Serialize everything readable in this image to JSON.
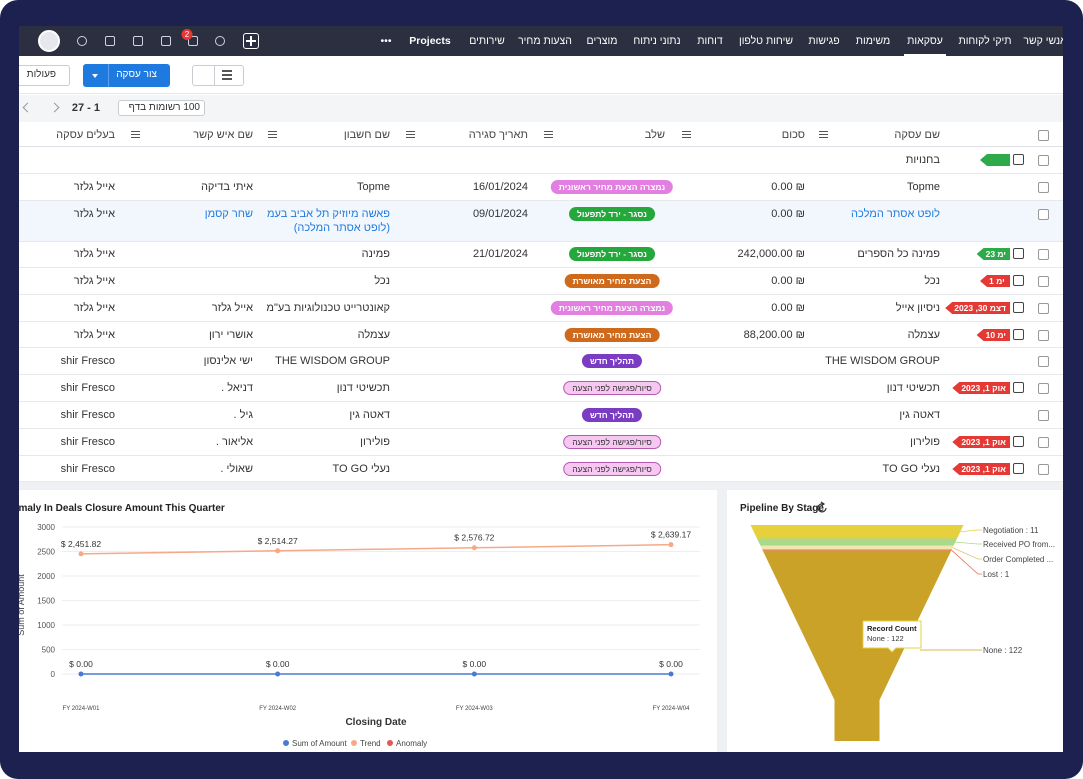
{
  "nav": {
    "items": [
      "אנשי קשר",
      "תיקי לקוחות",
      "עסקאות",
      "משימות",
      "פגישות",
      "שיחות טלפון",
      "דוחות",
      "נתוני ניתוח",
      "מוצרים",
      "הצעות מחיר",
      "שירותים",
      "Projects",
      "•••"
    ],
    "active": 2,
    "notification_count": "2"
  },
  "toolbar": {
    "actions": "פעולות",
    "create": "צור עסקה"
  },
  "pagination": {
    "range": "1 - 27",
    "per_page": "100 רשומות בדף"
  },
  "table": {
    "columns": [
      "שם עסקה",
      "סכום",
      "שלב",
      "תאריך סגירה",
      "שם חשבון",
      "שם איש קשר",
      "בעלים עסקה"
    ],
    "rows": [
      {
        "tag": {
          "color": "#2eaa4a"
        },
        "name": "בחנויות"
      },
      {
        "name": "Topme",
        "amount": "0.00 ₪",
        "stage": {
          "label": "נמצרה הצעת מחיר ראשונית",
          "color": "#e27fe0"
        },
        "date": "16/01/2024",
        "account": "Topme",
        "contact": "איתי בדיקה",
        "owner": "אייל גלזר"
      },
      {
        "name": "לופט אסתר המלכה",
        "amount": "0.00 ₪",
        "stage": {
          "label": "נסגר - ירד לתפעול",
          "color": "#24a83c"
        },
        "date": "09/01/2024",
        "account": "פאשה מיוזיק תל אביב בעמ (לופט אסתר המלכה)",
        "contact": "שחר קסמן",
        "owner": "אייל גלזר",
        "link": true
      },
      {
        "tag": {
          "label": "23 ימ",
          "color": "#2eaa4a"
        },
        "name": "פמינה כל הספרים",
        "amount": "242,000.00 ₪",
        "stage": {
          "label": "נסגר - ירד לתפעול",
          "color": "#24a83c"
        },
        "date": "21/01/2024",
        "account": "פמינה",
        "owner": "אייל גלזר"
      },
      {
        "tag": {
          "label": "1 ימ",
          "color": "#e53935"
        },
        "name": "נכל",
        "amount": "0.00 ₪",
        "stage": {
          "label": "הצעת מחיר מאושרת",
          "color": "#cf6a1c"
        },
        "account": "נכל",
        "owner": "אייל גלזר"
      },
      {
        "tag": {
          "label": "דצמ 30, 2023",
          "color": "#e53935"
        },
        "name": "ניסיון אייל",
        "amount": "0.00 ₪",
        "stage": {
          "label": "נמצרה הצעת מחיר ראשונית",
          "color": "#e27fe0"
        },
        "account": "קאונטרייט טכנולוגיות בע\"מ",
        "contact": "אייל גלזר",
        "owner": "אייל גלזר"
      },
      {
        "tag": {
          "label": "10 ימ",
          "color": "#e53935"
        },
        "name": "עצמלה",
        "amount": "88,200.00 ₪",
        "stage": {
          "label": "הצעת מחיר מאושרת",
          "color": "#cf6a1c"
        },
        "account": "עצמלה",
        "contact": "אושרי ירון",
        "owner": "אייל גלזר"
      },
      {
        "name": "THE WISDOM GROUP",
        "stage": {
          "label": "תהליך חדש",
          "color": "#7a3cc2"
        },
        "account": "THE WISDOM GROUP",
        "contact": "ישי אלינסון",
        "owner": "shir Fresco"
      },
      {
        "tag": {
          "label": "אוק 1, 2023",
          "color": "#e53935"
        },
        "name": "תכשיטי דנון",
        "stage": {
          "label": "סיור/פגישה לפני הצעה",
          "color": "#f6c8f1"
        },
        "account": "תכשיטי דנון",
        "contact": "דניאל .",
        "owner": "shir Fresco"
      },
      {
        "name": "דאטה גין",
        "stage": {
          "label": "תהליך חדש",
          "color": "#7a3cc2"
        },
        "account": "דאטה גין",
        "contact": "גיל .",
        "owner": "shir Fresco"
      },
      {
        "tag": {
          "label": "אוק 1, 2023",
          "color": "#e53935"
        },
        "name": "פולירון",
        "stage": {
          "label": "סיור/פגישה לפני הצעה",
          "color": "#f6c8f1"
        },
        "account": "פולירון",
        "contact": "אליאור .",
        "owner": "shir Fresco"
      },
      {
        "tag": {
          "label": "אוק 1, 2023",
          "color": "#e53935"
        },
        "name": "נעלי TO GO",
        "stage": {
          "label": "סיור/פגישה לפני הצעה",
          "color": "#f6c8f1"
        },
        "account": "נעלי TO GO",
        "contact": "שאולי .",
        "owner": "shir Fresco"
      }
    ]
  },
  "chart_data": [
    {
      "type": "line",
      "title": "Anomaly In Deals Closure Amount This Quarter",
      "x_label": "Closing Date",
      "y_label": "Sum of Amount",
      "categories": [
        "FY 2024-W01",
        "FY 2024-W02",
        "FY 2024-W03",
        "FY 2024-W04"
      ],
      "series": [
        {
          "name": "Sum of Amount",
          "color": "#4a7bd0",
          "values": [
            0,
            0,
            0,
            0
          ],
          "value_labels": [
            "$ 0.00",
            "$ 0.00",
            "$ 0.00",
            "$ 0.00"
          ]
        },
        {
          "name": "Trend",
          "color": "#f5a987",
          "values": [
            2451.82,
            2514.27,
            2576.72,
            2639.17
          ],
          "value_labels": [
            "$ 2,451.82",
            "$ 2,514.27",
            "$ 2,576.72",
            "$ 2,639.17"
          ]
        },
        {
          "name": "Anomaly",
          "color": "#e8564f",
          "values": [
            null,
            null,
            null,
            null
          ]
        }
      ],
      "ylim": [
        0,
        3000
      ],
      "yticks": [
        0,
        500,
        1000,
        1500,
        2000,
        2500,
        3000
      ],
      "grid": true
    },
    {
      "type": "funnel",
      "title": "Pipeline By Stage",
      "values": [
        11,
        6,
        3,
        1,
        122
      ],
      "value_labels": [
        "Negotiation : 11",
        "Received PO from...",
        "Order Completed ...",
        "Lost : 1",
        "None : 122"
      ],
      "colors": [
        "#e6d03c",
        "#a9d98b",
        "#f0e6b0",
        "#e8704f",
        "#c9a227"
      ],
      "tooltip": {
        "title": "Record Count",
        "text": "None : 122"
      }
    }
  ]
}
